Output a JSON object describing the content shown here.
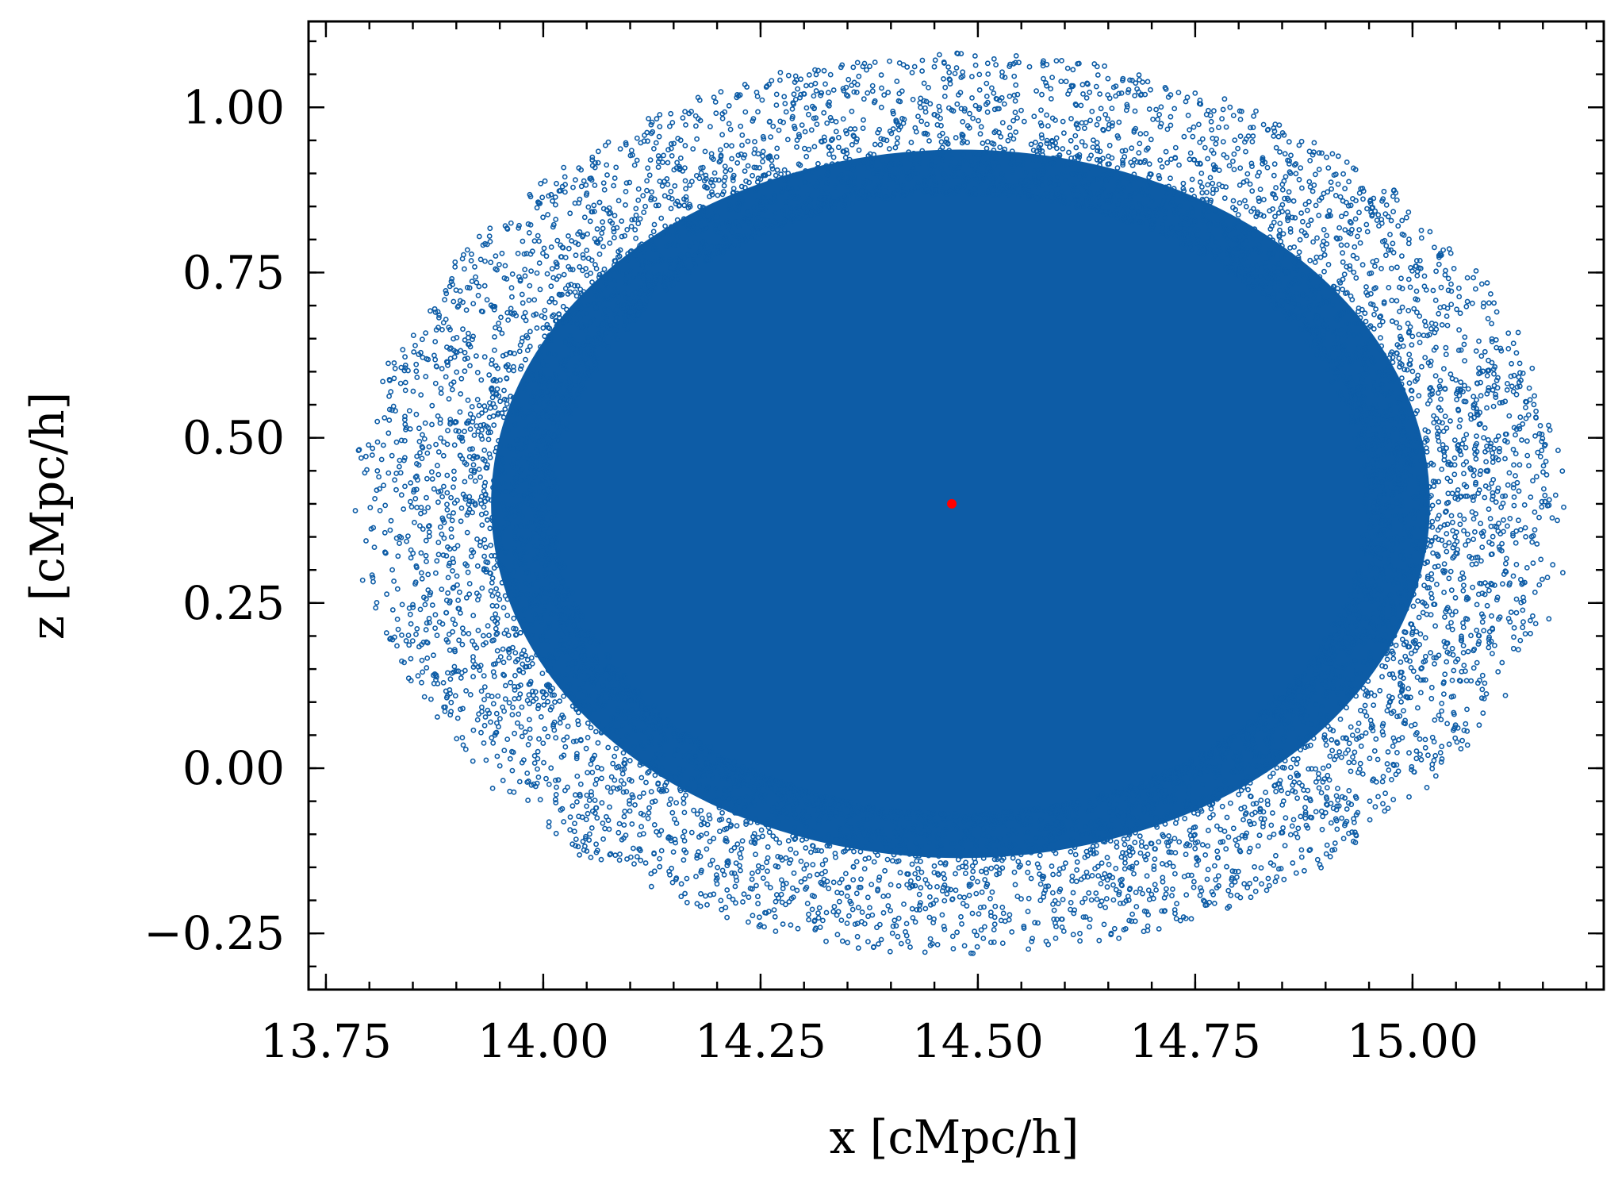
{
  "chart_data": {
    "type": "scatter",
    "title": "",
    "xlabel": "x [cMpc/h]",
    "ylabel": "z [cMpc/h]",
    "xlim": [
      13.73,
      15.22
    ],
    "ylim": [
      -0.335,
      1.13
    ],
    "xticks": [
      13.75,
      14.0,
      14.25,
      14.5,
      14.75,
      15.0
    ],
    "xtick_labels": [
      "13.75",
      "14.00",
      "14.25",
      "14.50",
      "14.75",
      "15.00"
    ],
    "yticks": [
      -0.25,
      0.0,
      0.25,
      0.5,
      0.75,
      1.0
    ],
    "ytick_labels": [
      "−0.25",
      "0.00",
      "0.25",
      "0.50",
      "0.75",
      "1.00"
    ],
    "x_minor_step": 0.05,
    "y_minor_step": 0.05,
    "grid": false,
    "series": [
      {
        "name": "particles",
        "color": "#0d5ca6",
        "marker": "hollow-circle",
        "distribution": {
          "shape": "ellipse",
          "center": [
            14.48,
            0.4
          ],
          "x_range": [
            13.8,
            15.15
          ],
          "y_range": [
            -0.27,
            1.07
          ],
          "approx_points": 60000
        }
      },
      {
        "name": "center",
        "color": "#ff0000",
        "marker": "filled-circle",
        "points": [
          [
            14.47,
            0.4
          ]
        ]
      }
    ]
  }
}
